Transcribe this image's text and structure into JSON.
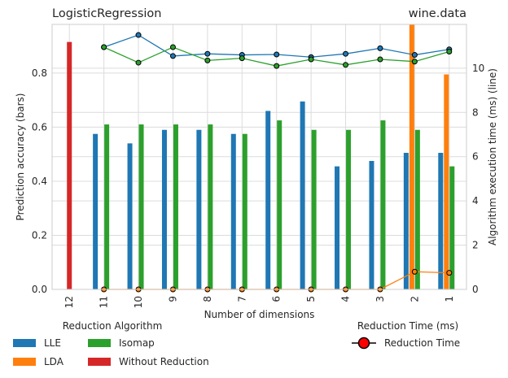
{
  "chart_data": {
    "type": "bar",
    "title_left": "LogisticRegression",
    "title_right": "wine.data",
    "xlabel": "Number of dimensions",
    "ylabel_left": "Prediction accuracy (bars)",
    "ylabel_right": "Algorithm execution time (ms) (line)",
    "categories": [
      "12",
      "11",
      "10",
      "9",
      "8",
      "7",
      "6",
      "5",
      "4",
      "3",
      "2",
      "1"
    ],
    "ylim_left": [
      0,
      0.98
    ],
    "yticks_left": [
      "0.0",
      "0.2",
      "0.4",
      "0.6",
      "0.8"
    ],
    "ylim_right": [
      0,
      11.98
    ],
    "yticks_right": [
      "0",
      "2",
      "4",
      "6",
      "8",
      "10"
    ],
    "bar_series": [
      {
        "name": "LLE",
        "color": "#1f77b4",
        "values": [
          null,
          0.575,
          0.54,
          0.59,
          0.59,
          0.575,
          0.66,
          0.695,
          0.455,
          0.475,
          0.505,
          0.505
        ]
      },
      {
        "name": "LDA",
        "color": "#ff7f0e",
        "values": [
          null,
          0,
          0,
          0,
          0,
          0,
          0,
          0,
          0,
          0,
          0.98,
          0.795
        ]
      },
      {
        "name": "Isomap",
        "color": "#2ca02c",
        "values": [
          null,
          0.61,
          0.61,
          0.61,
          0.61,
          0.575,
          0.625,
          0.59,
          0.59,
          0.625,
          0.59,
          0.455
        ]
      },
      {
        "name": "Without Reduction",
        "color": "#d62728",
        "values": [
          0.915,
          null,
          null,
          null,
          null,
          null,
          null,
          null,
          null,
          null,
          null,
          null
        ]
      }
    ],
    "line_series": [
      {
        "name": "LLE",
        "color": "#1f77b4",
        "values": [
          null,
          10.95,
          11.5,
          10.55,
          10.65,
          10.6,
          10.62,
          10.5,
          10.65,
          10.9,
          10.6,
          10.85
        ]
      },
      {
        "name": "LDA",
        "color": "#ff7f0e",
        "values": [
          null,
          0,
          0,
          0,
          0,
          0,
          0,
          0,
          0,
          0,
          0.8,
          0.75
        ]
      },
      {
        "name": "Isomap",
        "color": "#2ca02c",
        "values": [
          null,
          10.95,
          10.25,
          10.95,
          10.35,
          10.45,
          10.1,
          10.4,
          10.15,
          10.4,
          10.3,
          10.75
        ]
      }
    ],
    "legend": {
      "title": "Reduction Algorithm",
      "items": [
        "LLE",
        "LDA",
        "Isomap",
        "Without Reduction"
      ],
      "line_title": "Reduction Time (ms)",
      "line_item": "Reduction Time",
      "line_marker_color": "#ff0000"
    },
    "grid": true
  }
}
